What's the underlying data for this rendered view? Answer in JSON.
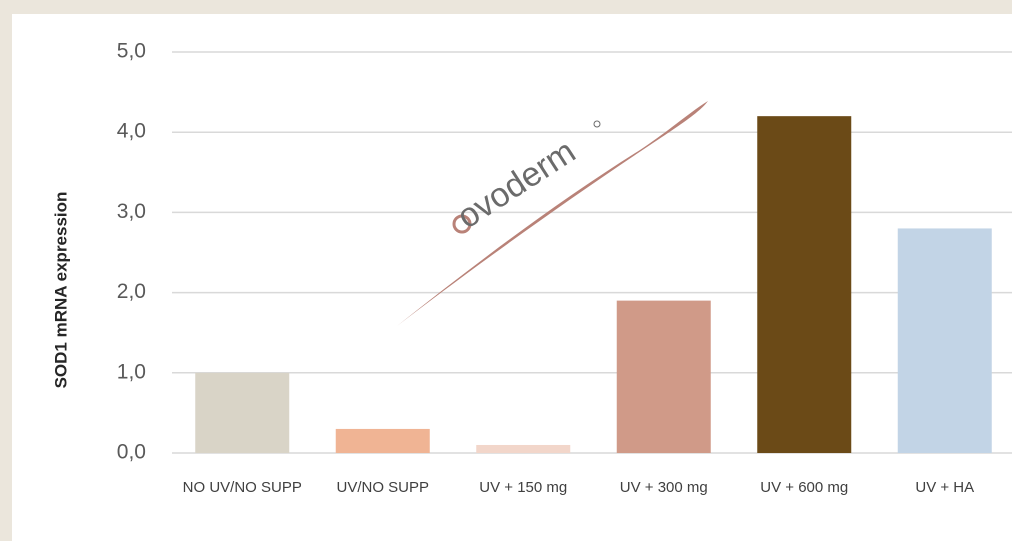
{
  "chart_data": {
    "type": "bar",
    "y_label": "SOD1 mRNA expression",
    "categories": [
      "NO UV/NO SUPP",
      "UV/NO SUPP",
      "UV + 150 mg",
      "UV + 300 mg",
      "UV + 600 mg",
      "UV + HA"
    ],
    "values": [
      1.0,
      0.3,
      0.1,
      1.9,
      4.2,
      2.8
    ],
    "colors": [
      "#d9d4c7",
      "#f0b494",
      "#f2d6ca",
      "#d09a88",
      "#6b4a17",
      "#c2d4e6"
    ],
    "ylim": [
      0,
      5
    ],
    "yticks": [
      {
        "value": 0,
        "label": "0,0"
      },
      {
        "value": 1,
        "label": "1,0"
      },
      {
        "value": 2,
        "label": "2,0"
      },
      {
        "value": 3,
        "label": "3,0"
      },
      {
        "value": 4,
        "label": "4,0"
      },
      {
        "value": 5,
        "label": "5,0"
      }
    ],
    "grid": true,
    "annotation": "ovoderm"
  }
}
